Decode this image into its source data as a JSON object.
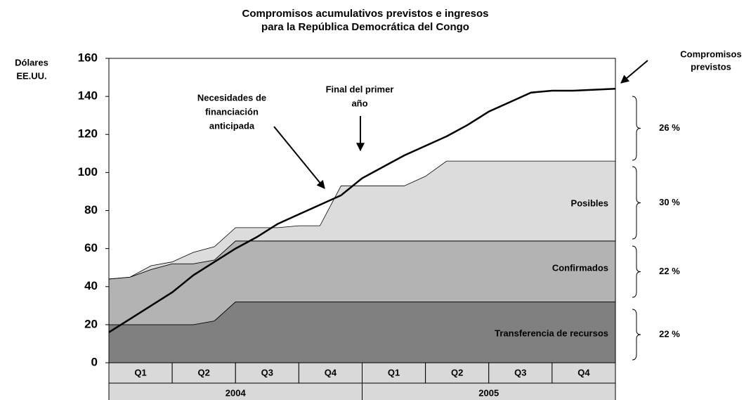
{
  "chart_data": {
    "type": "stacked_area_line",
    "title": [
      "Compromisos acumulativos previstos e ingresos",
      "para la República Democrática del Congo"
    ],
    "ylabel": [
      "Dólares",
      "EE.UU."
    ],
    "x": [
      0,
      1,
      2,
      3,
      4,
      5,
      6,
      7,
      8,
      9,
      10,
      11,
      12,
      13,
      14,
      15,
      16,
      17,
      18,
      19,
      20,
      21,
      22,
      23,
      24
    ],
    "xlim": [
      0,
      24
    ],
    "quarters": [
      "Q1",
      "Q2",
      "Q3",
      "Q4",
      "Q1",
      "Q2",
      "Q3",
      "Q4"
    ],
    "years": [
      "2004",
      "2005"
    ],
    "ylim": [
      0,
      160
    ],
    "yticks": [
      0,
      20,
      40,
      60,
      80,
      100,
      120,
      140,
      160
    ],
    "series": [
      {
        "name": "Transferencia de recursos",
        "color": "#808080",
        "values": [
          20,
          20,
          20,
          20,
          20,
          22,
          32,
          32,
          32,
          32,
          32,
          32,
          32,
          32,
          32,
          32,
          32,
          32,
          32,
          32,
          32,
          32,
          32,
          32,
          32
        ]
      },
      {
        "name": "Confirmados",
        "color": "#b3b3b3",
        "values": [
          24,
          25,
          29,
          32,
          32,
          32,
          32,
          32,
          32,
          32,
          32,
          32,
          32,
          32,
          32,
          32,
          32,
          32,
          32,
          32,
          32,
          32,
          32,
          32,
          32
        ]
      },
      {
        "name": "Posibles",
        "color": "#dcdcdc",
        "values": [
          0,
          0,
          2,
          1,
          6,
          7,
          7,
          7,
          7,
          8,
          8,
          29,
          29,
          29,
          29,
          34,
          42,
          42,
          42,
          42,
          42,
          42,
          42,
          42,
          42
        ]
      }
    ],
    "line": {
      "name": [
        "Compromisos",
        "previstos"
      ],
      "color": "#000000",
      "values": [
        16,
        23,
        30,
        37,
        46,
        53,
        60,
        66,
        73,
        78,
        83,
        88,
        97,
        103,
        109,
        114,
        119,
        125,
        132,
        137,
        142,
        143,
        143,
        143.5,
        144
      ]
    },
    "annotations": [
      {
        "lines": [
          "Necesidades de",
          "financiación",
          "anticipada"
        ]
      },
      {
        "lines": [
          "Final del primer",
          "año"
        ]
      }
    ],
    "percent_labels": [
      "26 %",
      "30 %",
      "22 %",
      "22 %"
    ]
  }
}
